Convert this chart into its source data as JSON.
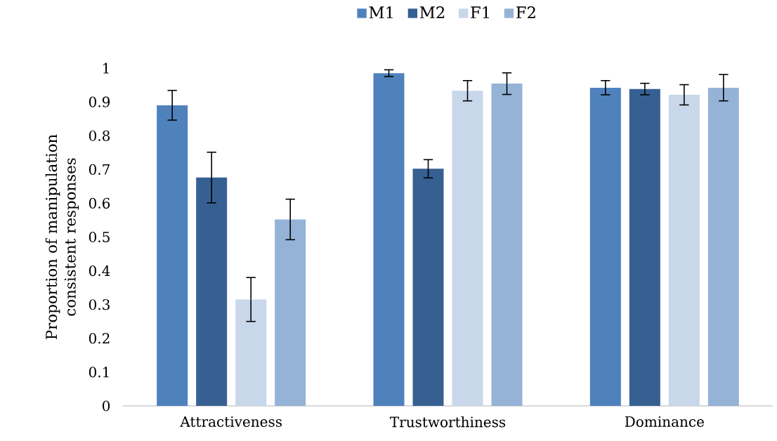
{
  "chart_data": {
    "type": "bar",
    "ylabel": "Proportion of manipulation consistent responses",
    "categories": [
      "Attractiveness",
      "Trustworthiness",
      "Dominance"
    ],
    "series": [
      {
        "name": "M1",
        "color": "#4f81bd",
        "values": [
          0.89,
          0.985,
          0.942
        ],
        "errors": [
          0.044,
          0.01,
          0.021
        ]
      },
      {
        "name": "M2",
        "color": "#366092",
        "values": [
          0.676,
          0.702,
          0.938
        ],
        "errors": [
          0.075,
          0.027,
          0.017
        ]
      },
      {
        "name": "F1",
        "color": "#c8d7ea",
        "values": [
          0.315,
          0.933,
          0.921
        ],
        "errors": [
          0.065,
          0.03,
          0.03
        ]
      },
      {
        "name": "F2",
        "color": "#95b3d7",
        "values": [
          0.552,
          0.954,
          0.942
        ],
        "errors": [
          0.06,
          0.032,
          0.039
        ]
      }
    ],
    "ylim": [
      0,
      1
    ],
    "yticks": [
      0,
      0.1,
      0.2,
      0.3,
      0.4,
      0.5,
      0.6,
      0.7,
      0.8,
      0.9,
      1
    ],
    "legend": "top"
  }
}
